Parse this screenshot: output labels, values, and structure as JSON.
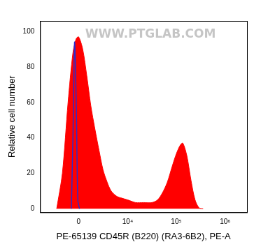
{
  "chart_data": {
    "type": "area",
    "annotations": [
      "WWW.PTGLAB.COM"
    ],
    "x_label": "PE-65139 CD45R (B220) (RA3-6B2), PE-A",
    "y_label": "Relative cell number",
    "xlim": [
      -6000,
      2800000
    ],
    "xticks": [
      0,
      {
        "value": 10000,
        "label": "10⁴"
      },
      {
        "value": 100000,
        "label": "10⁵"
      },
      {
        "value": 1000000,
        "label": "10⁶"
      }
    ],
    "ylim": [
      -2,
      106
    ],
    "yticks": [
      0,
      20,
      40,
      60,
      80,
      100
    ],
    "grid": false,
    "series": [
      {
        "type": "area",
        "color": "#ff0000",
        "x": [
          -2460,
          -1690,
          -1040,
          -545,
          -231,
          0,
          386,
          787,
          1216,
          1690,
          2230,
          2840,
          3580,
          4420,
          5880,
          7520,
          10000,
          14600,
          21500,
          31600,
          41200,
          52000,
          65400,
          82400,
          100000,
          121000,
          136000,
          164000,
          200000,
          242000,
          292000,
          354000
        ],
        "values": [
          0,
          20,
          60,
          88,
          96,
          97,
          90,
          75,
          58,
          45,
          33,
          22,
          15,
          10,
          7,
          6,
          5,
          3.5,
          3.5,
          3.5,
          5,
          9,
          15,
          24,
          31,
          36,
          37,
          30,
          16,
          5,
          0.5,
          0
        ]
      },
      {
        "type": "line",
        "color": "#2b2bcc",
        "x": [
          -704,
          -545,
          -386,
          -231,
          -77,
          77
        ],
        "values": [
          0,
          40,
          94,
          60,
          5,
          0
        ]
      }
    ]
  }
}
